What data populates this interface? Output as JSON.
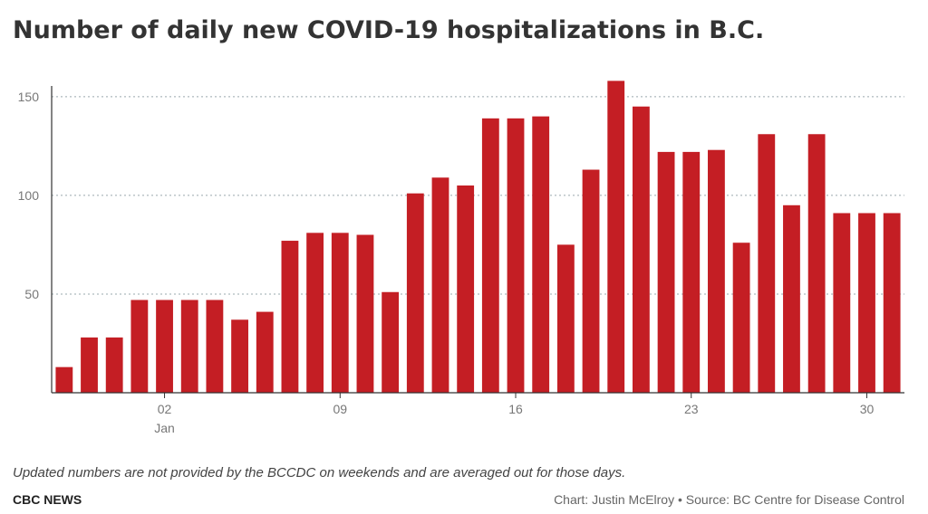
{
  "header": {
    "title": "Number of daily new COVID-19 hospitalizations in B.C."
  },
  "footer": {
    "note": "Updated numbers are not provided by the BCCDC on weekends and are averaged out for those days.",
    "brand": "CBC NEWS",
    "credit": "Chart: Justin McElroy • Source: BC Centre for Disease Control"
  },
  "colors": {
    "bar": "#c41e24",
    "grid": "#9aa8ad",
    "axis": "#333333"
  },
  "chart_data": {
    "type": "bar",
    "title": "Number of daily new COVID-19 hospitalizations in B.C.",
    "xlabel": "",
    "ylabel": "",
    "ylim": [
      0,
      160
    ],
    "grid": true,
    "yticks": [
      50,
      100,
      150
    ],
    "x": [
      "2021-12-29",
      "2021-12-30",
      "2021-12-31",
      "2022-01-01",
      "2022-01-02",
      "2022-01-03",
      "2022-01-04",
      "2022-01-05",
      "2022-01-06",
      "2022-01-07",
      "2022-01-08",
      "2022-01-09",
      "2022-01-10",
      "2022-01-11",
      "2022-01-12",
      "2022-01-13",
      "2022-01-14",
      "2022-01-15",
      "2022-01-16",
      "2022-01-17",
      "2022-01-18",
      "2022-01-19",
      "2022-01-20",
      "2022-01-21",
      "2022-01-22",
      "2022-01-23",
      "2022-01-24",
      "2022-01-25",
      "2022-01-26",
      "2022-01-27",
      "2022-01-28",
      "2022-01-29",
      "2022-01-30",
      "2022-01-31"
    ],
    "values": [
      13,
      28,
      28,
      47,
      47,
      47,
      47,
      37,
      41,
      77,
      81,
      81,
      80,
      51,
      101,
      109,
      105,
      139,
      139,
      140,
      75,
      113,
      158,
      145,
      122,
      122,
      123,
      76,
      131,
      95,
      131,
      91,
      91,
      91
    ],
    "xticks": [
      {
        "date": "2022-01-02",
        "label": "02",
        "sublabel": "Jan"
      },
      {
        "date": "2022-01-09",
        "label": "09",
        "sublabel": ""
      },
      {
        "date": "2022-01-16",
        "label": "16",
        "sublabel": ""
      },
      {
        "date": "2022-01-23",
        "label": "23",
        "sublabel": ""
      },
      {
        "date": "2022-01-30",
        "label": "30",
        "sublabel": ""
      }
    ]
  }
}
